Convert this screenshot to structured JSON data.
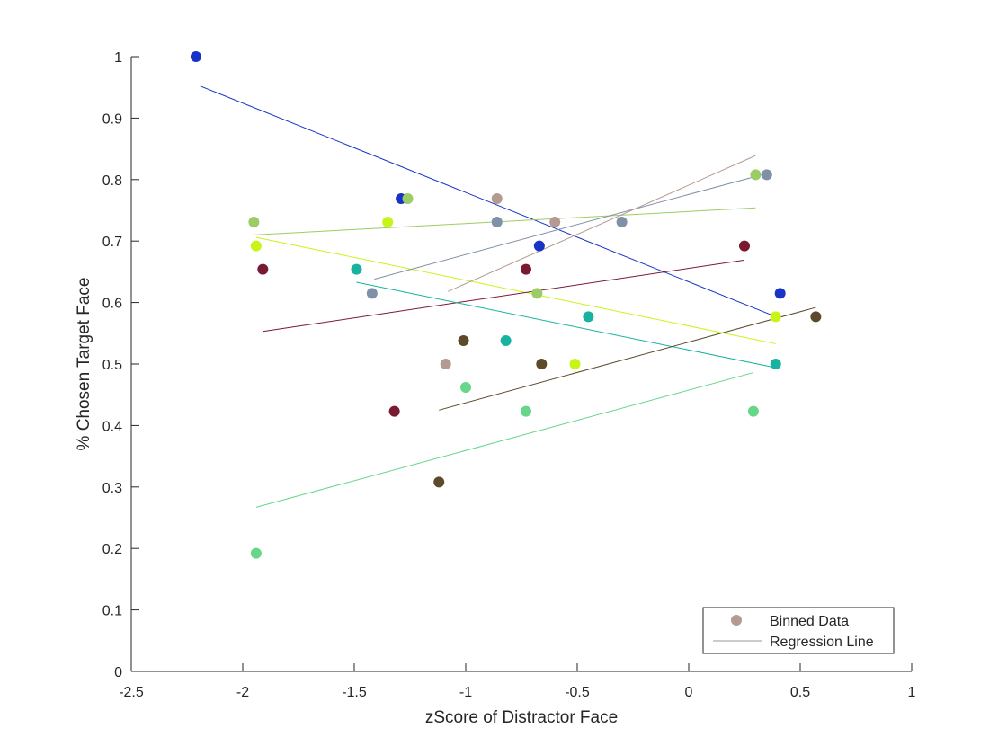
{
  "chart_data": {
    "type": "scatter",
    "xlabel": "zScore of Distractor Face",
    "ylabel": "% Chosen Target Face",
    "xlim": [
      -2.5,
      1
    ],
    "ylim": [
      0,
      1
    ],
    "xticks": [
      -2.5,
      -2,
      -1.5,
      -1,
      -0.5,
      0,
      0.5,
      1
    ],
    "yticks": [
      0,
      0.1,
      0.2,
      0.3,
      0.4,
      0.5,
      0.6,
      0.7,
      0.8,
      0.9,
      1
    ],
    "xtick_labels": [
      "-2.5",
      "-2",
      "-1.5",
      "-1",
      "-0.5",
      "0",
      "0.5",
      "1"
    ],
    "ytick_labels": [
      "0",
      "0.1",
      "0.2",
      "0.3",
      "0.4",
      "0.5",
      "0.6",
      "0.7",
      "0.8",
      "0.9",
      "1"
    ],
    "grid": false,
    "legend": {
      "placement": "bottom-right",
      "entries": [
        {
          "label": "Binned Data",
          "kind": "marker",
          "color": "#b49a90"
        },
        {
          "label": "Regression Line",
          "kind": "line",
          "color": "#999999"
        }
      ]
    },
    "series": [
      {
        "color": "#1933c7",
        "points": [
          [
            -2.21,
            1.0
          ],
          [
            -1.29,
            0.769
          ],
          [
            -0.67,
            0.692
          ],
          [
            0.41,
            0.615
          ]
        ],
        "line": [
          [
            -2.19,
            0.952
          ],
          [
            0.39,
            0.577
          ]
        ]
      },
      {
        "color": "#9ccc66",
        "points": [
          [
            -1.95,
            0.731
          ],
          [
            -1.26,
            0.769
          ],
          [
            -0.68,
            0.615
          ],
          [
            0.3,
            0.808
          ]
        ],
        "line": [
          [
            -1.95,
            0.71
          ],
          [
            0.3,
            0.754
          ]
        ]
      },
      {
        "color": "#c8f517",
        "points": [
          [
            -1.94,
            0.692
          ],
          [
            -1.35,
            0.731
          ],
          [
            -0.51,
            0.5
          ],
          [
            0.39,
            0.577
          ]
        ],
        "line": [
          [
            -1.94,
            0.706
          ],
          [
            0.39,
            0.533
          ]
        ]
      },
      {
        "color": "#7a1a30",
        "points": [
          [
            -1.91,
            0.654
          ],
          [
            -1.32,
            0.423
          ],
          [
            -0.73,
            0.654
          ],
          [
            0.25,
            0.692
          ]
        ],
        "line": [
          [
            -1.91,
            0.553
          ],
          [
            0.25,
            0.669
          ]
        ]
      },
      {
        "color": "#17b3a0",
        "points": [
          [
            -1.49,
            0.654
          ],
          [
            -0.82,
            0.538
          ],
          [
            -0.45,
            0.577
          ],
          [
            0.39,
            0.5
          ]
        ],
        "line": [
          [
            -1.49,
            0.633
          ],
          [
            0.39,
            0.494
          ]
        ]
      },
      {
        "color": "#8090a8",
        "points": [
          [
            -1.42,
            0.615
          ],
          [
            -0.86,
            0.731
          ],
          [
            -0.3,
            0.731
          ],
          [
            0.35,
            0.808
          ]
        ],
        "line": [
          [
            -1.41,
            0.638
          ],
          [
            0.35,
            0.81
          ]
        ]
      },
      {
        "color": "#b49a90",
        "points": [
          [
            -1.09,
            0.5
          ],
          [
            -0.86,
            0.769
          ],
          [
            -0.6,
            0.731
          ]
        ],
        "line": [
          [
            -1.08,
            0.618
          ],
          [
            0.3,
            0.839
          ]
        ]
      },
      {
        "color": "#5c4a2a",
        "points": [
          [
            -1.12,
            0.308
          ],
          [
            -1.01,
            0.538
          ],
          [
            -0.66,
            0.5
          ],
          [
            0.57,
            0.577
          ]
        ],
        "line": [
          [
            -1.12,
            0.425
          ],
          [
            0.57,
            0.592
          ]
        ]
      },
      {
        "color": "#66d688",
        "points": [
          [
            -1.94,
            0.192
          ],
          [
            -1.0,
            0.462
          ],
          [
            -0.73,
            0.423
          ],
          [
            0.29,
            0.423
          ]
        ],
        "line": [
          [
            -1.94,
            0.267
          ],
          [
            0.29,
            0.486
          ]
        ]
      }
    ]
  }
}
